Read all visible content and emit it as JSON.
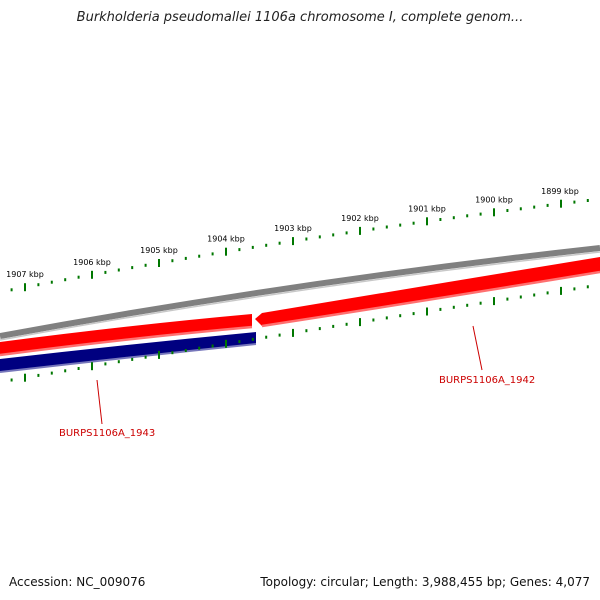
{
  "title": "Burkholderia pseudomallei 1106a chromosome I, complete genom...",
  "footer": {
    "accession": "Accession: NC_009076",
    "summary": "Topology: circular; Length: 3,988,455 bp; Genes: 4,077"
  },
  "ticks": [
    {
      "label": "1907 kbp"
    },
    {
      "label": "1906 kbp"
    },
    {
      "label": "1905 kbp"
    },
    {
      "label": "1904 kbp"
    },
    {
      "label": "1903 kbp"
    },
    {
      "label": "1902 kbp"
    },
    {
      "label": "1901 kbp"
    },
    {
      "label": "1900 kbp"
    },
    {
      "label": "1899 kbp"
    }
  ],
  "genes": [
    {
      "name": "BURPS1106A_1942",
      "strand": "forward",
      "color": "#ff0000"
    },
    {
      "name": "BURPS1106A_1943",
      "strand": "reverse",
      "color": "#000080"
    }
  ],
  "colors": {
    "backbone": "#808080",
    "tick": "#007700",
    "forward_gene": "#ff0000",
    "reverse_gene": "#000080",
    "label": "#cc0000"
  }
}
